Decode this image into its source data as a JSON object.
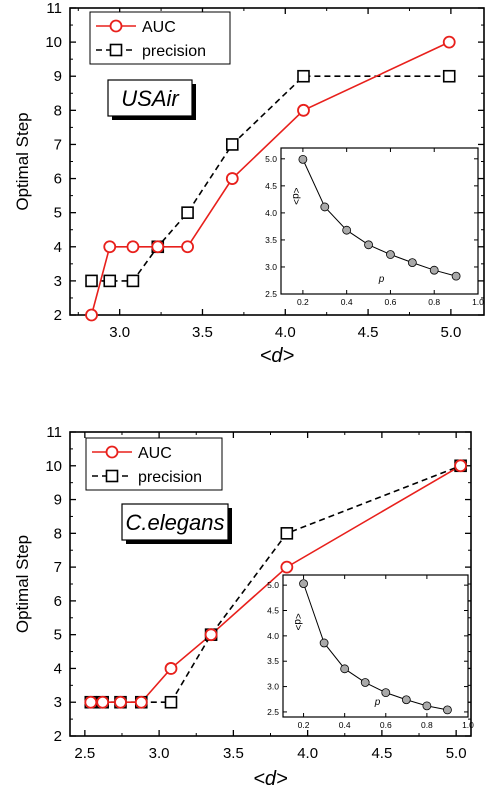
{
  "colors": {
    "auc": "#e8201c",
    "precision": "#000000",
    "inset_marker": "#a9a9a9"
  },
  "chart_data": [
    {
      "type": "line",
      "network_label": "USAir",
      "xlabel": "<d>",
      "ylabel": "Optimal Step",
      "xlim": [
        2.7,
        5.2
      ],
      "ylim": [
        2,
        11
      ],
      "xticks": [
        "3.0",
        "3.5",
        "4.0",
        "4.5",
        "5.0"
      ],
      "yticks": [
        "2",
        "3",
        "4",
        "5",
        "6",
        "7",
        "8",
        "9",
        "10",
        "11"
      ],
      "legend_position": "top-left",
      "series": [
        {
          "name": "AUC",
          "marker": "circle",
          "line": "solid",
          "x": [
            2.83,
            2.94,
            3.08,
            3.23,
            3.41,
            3.68,
            4.11,
            4.99
          ],
          "y": [
            2,
            4,
            4,
            4,
            4,
            6,
            8,
            10
          ]
        },
        {
          "name": "precision",
          "marker": "square",
          "line": "dashed",
          "x": [
            2.83,
            2.94,
            3.08,
            3.23,
            3.41,
            3.68,
            4.11,
            4.99
          ],
          "y": [
            3,
            3,
            3,
            4,
            5,
            7,
            9,
            9
          ]
        }
      ],
      "inset": {
        "xlabel": "p",
        "ylabel": "<d>",
        "xlim": [
          0.1,
          1.0
        ],
        "ylim": [
          2.5,
          5.2
        ],
        "xticks": [
          "0.2",
          "0.4",
          "0.6",
          "0.8",
          "1.0"
        ],
        "yticks": [
          "2.5",
          "3.0",
          "3.5",
          "4.0",
          "4.5",
          "5.0"
        ],
        "x": [
          0.2,
          0.3,
          0.4,
          0.5,
          0.6,
          0.7,
          0.8,
          0.9
        ],
        "y": [
          4.99,
          4.11,
          3.68,
          3.41,
          3.23,
          3.08,
          2.94,
          2.83
        ]
      }
    },
    {
      "type": "line",
      "network_label": "C.elegans",
      "xlabel": "<d>",
      "ylabel": "Optimal Step",
      "xlim": [
        2.4,
        5.1
      ],
      "ylim": [
        2,
        11
      ],
      "xticks": [
        "2.5",
        "3.0",
        "3.5",
        "4.0",
        "4.5",
        "5.0"
      ],
      "yticks": [
        "2",
        "3",
        "4",
        "5",
        "6",
        "7",
        "8",
        "9",
        "10",
        "11"
      ],
      "legend_position": "top-left",
      "series": [
        {
          "name": "AUC",
          "marker": "circle",
          "line": "solid",
          "x": [
            2.54,
            2.62,
            2.74,
            2.88,
            3.08,
            3.35,
            3.86,
            5.03
          ],
          "y": [
            3,
            3,
            3,
            3,
            4,
            5,
            7,
            10
          ]
        },
        {
          "name": "precision",
          "marker": "square",
          "line": "dashed",
          "x": [
            2.54,
            2.62,
            2.74,
            2.88,
            3.08,
            3.35,
            3.86,
            5.03
          ],
          "y": [
            3,
            3,
            3,
            3,
            3,
            5,
            8,
            10
          ]
        }
      ],
      "inset": {
        "xlabel": "p",
        "ylabel": "<d>",
        "xlim": [
          0.1,
          1.0
        ],
        "ylim": [
          2.4,
          5.2
        ],
        "xticks": [
          "0.2",
          "0.4",
          "0.6",
          "0.8",
          "1.0"
        ],
        "yticks": [
          "2.5",
          "3.0",
          "3.5",
          "4.0",
          "4.5",
          "5.0"
        ],
        "x": [
          0.2,
          0.3,
          0.4,
          0.5,
          0.6,
          0.7,
          0.8,
          0.9
        ],
        "y": [
          5.03,
          3.86,
          3.35,
          3.08,
          2.88,
          2.74,
          2.62,
          2.54
        ]
      }
    }
  ]
}
